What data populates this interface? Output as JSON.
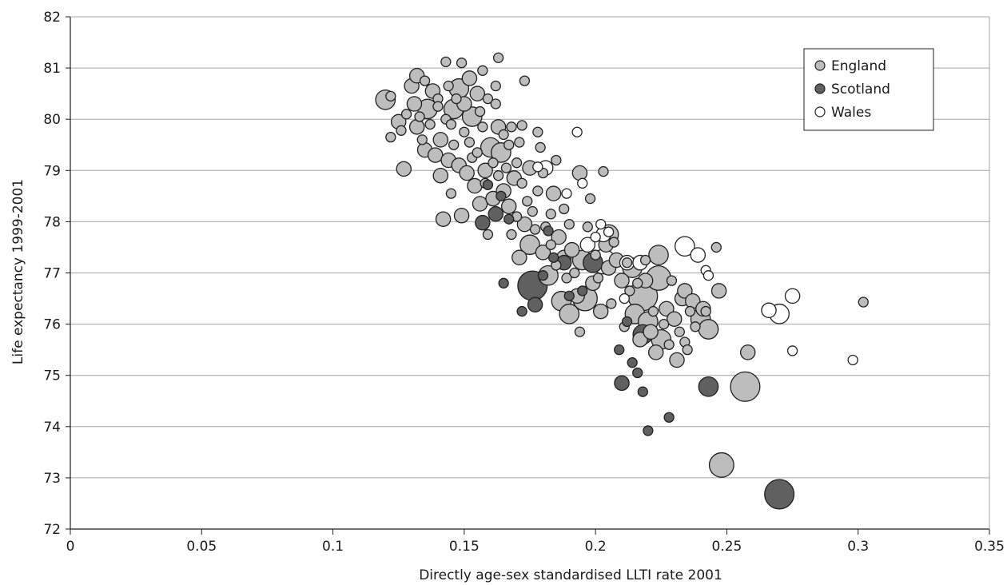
{
  "chart_data": {
    "type": "scatter",
    "title": "",
    "xlabel": "Directly age-sex standardised LLTI rate 2001",
    "ylabel": "Life expectancy 1999-2001",
    "xlim": [
      0,
      0.35
    ],
    "ylim": [
      72,
      82
    ],
    "x_ticks": [
      "0",
      "0.05",
      "0.1",
      "0.15",
      "0.2",
      "0.25",
      "0.3",
      "0.35"
    ],
    "y_ticks": [
      "72",
      "73",
      "74",
      "75",
      "76",
      "77",
      "78",
      "79",
      "80",
      "81",
      "82"
    ],
    "grid": "horizontal",
    "legend_position": "top-right",
    "bubble_size": "relative",
    "colors": {
      "England": "#bdbdbd",
      "Scotland": "#606060",
      "Wales": "#ffffff",
      "outline": "#1f1f1f",
      "grid": "#a6a6a6"
    },
    "series": [
      {
        "name": "England",
        "points": [
          [
            0.12,
            80.38,
            2
          ],
          [
            0.122,
            80.45,
            1
          ],
          [
            0.122,
            79.65,
            1
          ],
          [
            0.125,
            79.95,
            1.5
          ],
          [
            0.126,
            79.78,
            1
          ],
          [
            0.127,
            79.03,
            1.5
          ],
          [
            0.128,
            80.1,
            1
          ],
          [
            0.13,
            80.65,
            1.5
          ],
          [
            0.131,
            80.3,
            1.5
          ],
          [
            0.132,
            79.85,
            1.5
          ],
          [
            0.132,
            80.85,
            1.5
          ],
          [
            0.133,
            80.05,
            1
          ],
          [
            0.134,
            79.6,
            1
          ],
          [
            0.135,
            80.75,
            1
          ],
          [
            0.135,
            79.4,
            1.5
          ],
          [
            0.136,
            80.2,
            2
          ],
          [
            0.137,
            79.9,
            1
          ],
          [
            0.138,
            80.55,
            1.5
          ],
          [
            0.139,
            79.3,
            1.5
          ],
          [
            0.14,
            80.4,
            1
          ],
          [
            0.14,
            80.25,
            1
          ],
          [
            0.141,
            79.6,
            1.5
          ],
          [
            0.141,
            78.9,
            1.5
          ],
          [
            0.142,
            78.05,
            1.5
          ],
          [
            0.143,
            80.0,
            1
          ],
          [
            0.143,
            81.12,
            1
          ],
          [
            0.144,
            80.65,
            1
          ],
          [
            0.144,
            79.2,
            1.5
          ],
          [
            0.145,
            79.9,
            1
          ],
          [
            0.145,
            78.55,
            1
          ],
          [
            0.146,
            80.2,
            2
          ],
          [
            0.146,
            79.5,
            1
          ],
          [
            0.147,
            80.4,
            1
          ],
          [
            0.148,
            80.6,
            2
          ],
          [
            0.148,
            79.1,
            1.5
          ],
          [
            0.149,
            81.1,
            1
          ],
          [
            0.149,
            78.12,
            1.5
          ],
          [
            0.15,
            80.3,
            1.5
          ],
          [
            0.15,
            79.75,
            1
          ],
          [
            0.151,
            78.95,
            1.5
          ],
          [
            0.152,
            80.8,
            1.5
          ],
          [
            0.152,
            79.55,
            1
          ],
          [
            0.153,
            80.05,
            2
          ],
          [
            0.153,
            79.25,
            1
          ],
          [
            0.154,
            78.7,
            1.5
          ],
          [
            0.155,
            80.5,
            1.5
          ],
          [
            0.155,
            79.35,
            1
          ],
          [
            0.156,
            80.15,
            1
          ],
          [
            0.156,
            78.35,
            1.5
          ],
          [
            0.157,
            80.95,
            1
          ],
          [
            0.157,
            79.85,
            1
          ],
          [
            0.158,
            79.0,
            1.5
          ],
          [
            0.158,
            78.75,
            1
          ],
          [
            0.159,
            80.4,
            1
          ],
          [
            0.159,
            77.75,
            1
          ],
          [
            0.16,
            79.45,
            2
          ],
          [
            0.161,
            79.15,
            1
          ],
          [
            0.161,
            78.45,
            1.5
          ],
          [
            0.162,
            80.65,
            1
          ],
          [
            0.162,
            80.3,
            1
          ],
          [
            0.163,
            79.85,
            1.5
          ],
          [
            0.163,
            78.9,
            1
          ],
          [
            0.163,
            81.2,
            1
          ],
          [
            0.164,
            79.35,
            2
          ],
          [
            0.165,
            78.6,
            1.5
          ],
          [
            0.165,
            79.7,
            1
          ],
          [
            0.166,
            79.05,
            1
          ],
          [
            0.167,
            78.3,
            1.5
          ],
          [
            0.167,
            79.5,
            1
          ],
          [
            0.168,
            79.85,
            1
          ],
          [
            0.168,
            77.75,
            1
          ],
          [
            0.169,
            78.85,
            1.5
          ],
          [
            0.17,
            79.15,
            1
          ],
          [
            0.17,
            78.1,
            1
          ],
          [
            0.171,
            79.55,
            1
          ],
          [
            0.171,
            77.3,
            1.5
          ],
          [
            0.172,
            78.75,
            1
          ],
          [
            0.172,
            79.88,
            1
          ],
          [
            0.173,
            80.75,
            1
          ],
          [
            0.173,
            77.95,
            1.5
          ],
          [
            0.174,
            78.4,
            1
          ],
          [
            0.175,
            79.05,
            1.5
          ],
          [
            0.175,
            77.55,
            2
          ],
          [
            0.176,
            78.2,
            1
          ],
          [
            0.177,
            77.85,
            1
          ],
          [
            0.178,
            79.75,
            1
          ],
          [
            0.178,
            78.6,
            1
          ],
          [
            0.179,
            79.45,
            1
          ],
          [
            0.18,
            77.4,
            1.5
          ],
          [
            0.18,
            78.95,
            1
          ],
          [
            0.181,
            77.9,
            1
          ],
          [
            0.182,
            76.95,
            2
          ],
          [
            0.183,
            78.15,
            1
          ],
          [
            0.183,
            77.55,
            1
          ],
          [
            0.184,
            78.55,
            1.5
          ],
          [
            0.185,
            77.15,
            1
          ],
          [
            0.185,
            79.2,
            1
          ],
          [
            0.186,
            77.7,
            1.5
          ],
          [
            0.187,
            76.45,
            2
          ],
          [
            0.188,
            78.25,
            1
          ],
          [
            0.188,
            77.3,
            1.5
          ],
          [
            0.189,
            76.9,
            1
          ],
          [
            0.19,
            77.95,
            1
          ],
          [
            0.19,
            76.2,
            2
          ],
          [
            0.191,
            77.45,
            1.5
          ],
          [
            0.192,
            77.0,
            1
          ],
          [
            0.193,
            76.55,
            1.5
          ],
          [
            0.194,
            75.85,
            1
          ],
          [
            0.194,
            78.95,
            1.5
          ],
          [
            0.195,
            77.25,
            2
          ],
          [
            0.196,
            76.5,
            2.5
          ],
          [
            0.197,
            77.9,
            1
          ],
          [
            0.198,
            78.45,
            1
          ],
          [
            0.199,
            76.8,
            1.5
          ],
          [
            0.2,
            77.35,
            1
          ],
          [
            0.201,
            76.9,
            1
          ],
          [
            0.202,
            76.25,
            1.5
          ],
          [
            0.203,
            78.98,
            1
          ],
          [
            0.204,
            77.55,
            1.5
          ],
          [
            0.205,
            77.1,
            1.5
          ],
          [
            0.205,
            77.75,
            2
          ],
          [
            0.206,
            76.4,
            1
          ],
          [
            0.207,
            77.6,
            1
          ],
          [
            0.208,
            77.25,
            1.5
          ],
          [
            0.21,
            76.85,
            1.5
          ],
          [
            0.211,
            75.95,
            1
          ],
          [
            0.212,
            77.2,
            1
          ],
          [
            0.213,
            76.65,
            1
          ],
          [
            0.214,
            77.1,
            2
          ],
          [
            0.215,
            76.2,
            2
          ],
          [
            0.216,
            76.8,
            1
          ],
          [
            0.217,
            75.7,
            1.5
          ],
          [
            0.218,
            76.55,
            3
          ],
          [
            0.219,
            76.85,
            1.5
          ],
          [
            0.219,
            77.25,
            1
          ],
          [
            0.22,
            76.05,
            2
          ],
          [
            0.221,
            75.85,
            1.5
          ],
          [
            0.222,
            76.25,
            1
          ],
          [
            0.223,
            75.45,
            1.5
          ],
          [
            0.224,
            77.35,
            2
          ],
          [
            0.224,
            76.9,
            2.5
          ],
          [
            0.225,
            75.7,
            2
          ],
          [
            0.226,
            76.0,
            1
          ],
          [
            0.227,
            76.3,
            1.5
          ],
          [
            0.228,
            75.6,
            1
          ],
          [
            0.229,
            76.85,
            1
          ],
          [
            0.23,
            76.1,
            1.5
          ],
          [
            0.231,
            75.3,
            1.5
          ],
          [
            0.232,
            75.85,
            1
          ],
          [
            0.233,
            76.5,
            1.5
          ],
          [
            0.234,
            76.65,
            1.5
          ],
          [
            0.234,
            75.65,
            1
          ],
          [
            0.235,
            75.5,
            1
          ],
          [
            0.236,
            76.25,
            1
          ],
          [
            0.237,
            76.45,
            1.5
          ],
          [
            0.238,
            75.95,
            1
          ],
          [
            0.24,
            76.1,
            2
          ],
          [
            0.241,
            76.3,
            1.5
          ],
          [
            0.242,
            76.25,
            1
          ],
          [
            0.243,
            75.9,
            2
          ],
          [
            0.246,
            77.5,
            1
          ],
          [
            0.247,
            76.65,
            1.5
          ],
          [
            0.248,
            73.25,
            2.5
          ],
          [
            0.258,
            75.45,
            1.5
          ],
          [
            0.257,
            74.78,
            3
          ],
          [
            0.302,
            76.43,
            1
          ]
        ]
      },
      {
        "name": "Scotland",
        "points": [
          [
            0.157,
            77.98,
            1.5
          ],
          [
            0.159,
            78.72,
            1
          ],
          [
            0.162,
            78.15,
            1.5
          ],
          [
            0.164,
            78.5,
            1
          ],
          [
            0.165,
            76.8,
            1
          ],
          [
            0.167,
            78.05,
            1
          ],
          [
            0.172,
            76.25,
            1
          ],
          [
            0.176,
            76.75,
            3
          ],
          [
            0.177,
            76.38,
            1.5
          ],
          [
            0.18,
            76.95,
            1
          ],
          [
            0.182,
            77.82,
            1
          ],
          [
            0.184,
            77.3,
            1
          ],
          [
            0.188,
            77.2,
            1.5
          ],
          [
            0.19,
            76.55,
            1
          ],
          [
            0.195,
            76.65,
            1
          ],
          [
            0.199,
            77.2,
            2
          ],
          [
            0.209,
            75.5,
            1
          ],
          [
            0.21,
            74.85,
            1.5
          ],
          [
            0.212,
            76.05,
            1
          ],
          [
            0.214,
            75.25,
            1
          ],
          [
            0.216,
            75.05,
            1
          ],
          [
            0.218,
            74.68,
            1
          ],
          [
            0.218,
            75.8,
            2
          ],
          [
            0.22,
            73.92,
            1
          ],
          [
            0.228,
            74.18,
            1
          ],
          [
            0.243,
            74.78,
            2
          ],
          [
            0.27,
            72.68,
            3
          ]
        ]
      },
      {
        "name": "Wales",
        "points": [
          [
            0.178,
            79.07,
            1
          ],
          [
            0.181,
            79.05,
            1.5
          ],
          [
            0.189,
            78.55,
            1
          ],
          [
            0.193,
            79.75,
            1
          ],
          [
            0.195,
            78.75,
            1
          ],
          [
            0.197,
            77.55,
            1.5
          ],
          [
            0.2,
            77.7,
            1
          ],
          [
            0.202,
            77.95,
            1
          ],
          [
            0.203,
            77.75,
            1.5
          ],
          [
            0.203,
            77.22,
            2.5
          ],
          [
            0.205,
            77.8,
            1
          ],
          [
            0.211,
            76.5,
            1
          ],
          [
            0.212,
            77.2,
            1.5
          ],
          [
            0.217,
            77.2,
            1.5
          ],
          [
            0.234,
            77.52,
            2
          ],
          [
            0.239,
            77.35,
            1.5
          ],
          [
            0.242,
            77.05,
            1
          ],
          [
            0.243,
            76.95,
            1
          ],
          [
            0.266,
            76.27,
            1.5
          ],
          [
            0.27,
            76.2,
            2
          ],
          [
            0.275,
            76.55,
            1.5
          ],
          [
            0.275,
            75.48,
            1
          ],
          [
            0.298,
            75.3,
            1
          ]
        ]
      }
    ]
  }
}
